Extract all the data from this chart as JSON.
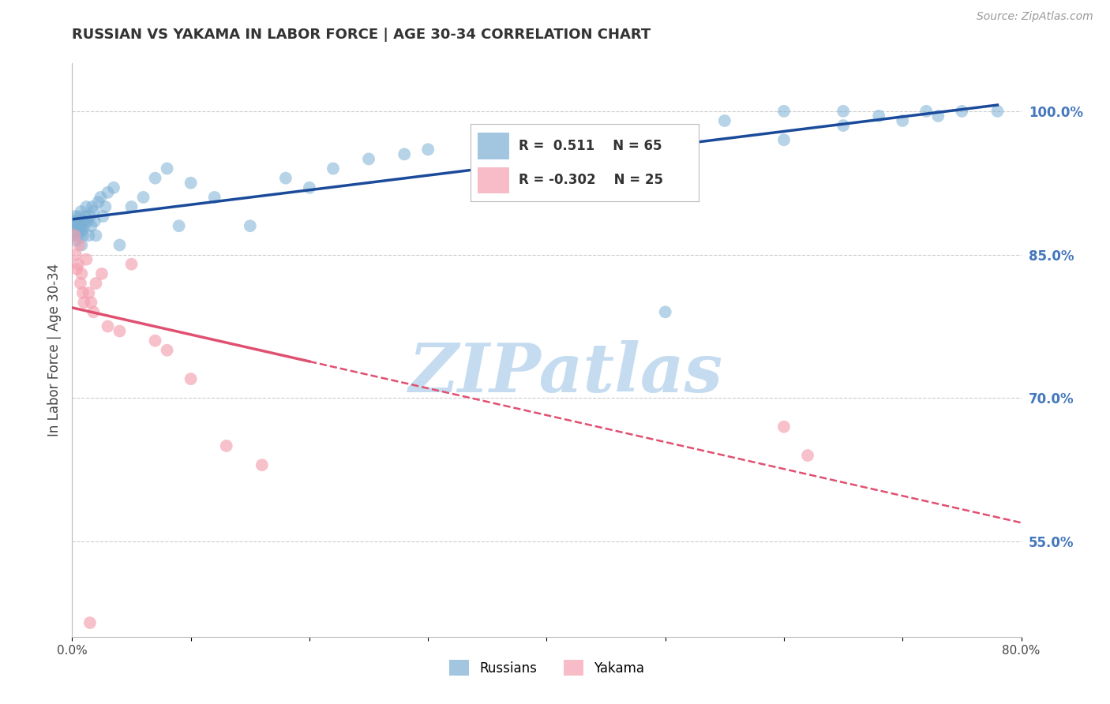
{
  "title": "RUSSIAN VS YAKAMA IN LABOR FORCE | AGE 30-34 CORRELATION CHART",
  "source_text": "Source: ZipAtlas.com",
  "ylabel": "In Labor Force | Age 30-34",
  "xlim": [
    0.0,
    80.0
  ],
  "ylim": [
    45.0,
    105.0
  ],
  "ytick_right_labels": [
    "100.0%",
    "85.0%",
    "70.0%",
    "55.0%"
  ],
  "ytick_right_values": [
    100.0,
    85.0,
    70.0,
    55.0
  ],
  "xtick_values": [
    0.0,
    10.0,
    20.0,
    30.0,
    40.0,
    50.0,
    60.0,
    70.0,
    80.0
  ],
  "blue_color": "#7BAFD4",
  "pink_color": "#F4A0B0",
  "blue_line_color": "#1A4A9A",
  "pink_line_color": "#E05070",
  "watermark_color": "#C5DCF0",
  "grid_color": "#CCCCCC",
  "right_axis_color": "#4477BB",
  "russians_x": [
    0.15,
    0.2,
    0.25,
    0.3,
    0.35,
    0.4,
    0.45,
    0.5,
    0.55,
    0.6,
    0.65,
    0.7,
    0.75,
    0.8,
    0.85,
    0.9,
    0.95,
    1.0,
    1.1,
    1.2,
    1.3,
    1.4,
    1.5,
    1.6,
    1.7,
    1.8,
    1.9,
    2.0,
    2.2,
    2.4,
    2.6,
    2.8,
    3.0,
    3.5,
    4.0,
    5.0,
    6.0,
    7.0,
    8.0,
    9.0,
    10.0,
    12.0,
    15.0,
    18.0,
    20.0,
    22.0,
    25.0,
    28.0,
    30.0,
    35.0,
    38.0,
    40.0,
    45.0,
    50.0,
    55.0,
    60.0,
    65.0,
    68.0,
    72.0,
    75.0,
    78.0,
    60.0,
    65.0,
    70.0,
    73.0
  ],
  "russians_y": [
    88.5,
    87.0,
    89.0,
    87.5,
    88.0,
    86.5,
    88.5,
    87.0,
    88.0,
    89.0,
    87.5,
    88.0,
    89.5,
    86.0,
    87.5,
    87.0,
    88.5,
    88.0,
    89.0,
    90.0,
    88.5,
    87.0,
    89.0,
    88.0,
    90.0,
    89.5,
    88.5,
    87.0,
    90.5,
    91.0,
    89.0,
    90.0,
    91.5,
    92.0,
    86.0,
    90.0,
    91.0,
    93.0,
    94.0,
    88.0,
    92.5,
    91.0,
    88.0,
    93.0,
    92.0,
    94.0,
    95.0,
    95.5,
    96.0,
    96.5,
    97.0,
    98.0,
    97.0,
    79.0,
    99.0,
    100.0,
    100.0,
    99.5,
    100.0,
    100.0,
    100.0,
    97.0,
    98.5,
    99.0,
    99.5
  ],
  "yakama_x": [
    0.2,
    0.3,
    0.4,
    0.5,
    0.6,
    0.7,
    0.8,
    0.9,
    1.0,
    1.2,
    1.4,
    1.6,
    1.8,
    2.0,
    2.5,
    3.0,
    4.0,
    5.0,
    7.0,
    8.0,
    10.0,
    13.0,
    16.0,
    60.0,
    62.0
  ],
  "yakama_y": [
    87.0,
    85.0,
    83.5,
    84.0,
    86.0,
    82.0,
    83.0,
    81.0,
    80.0,
    84.5,
    81.0,
    80.0,
    79.0,
    82.0,
    83.0,
    77.5,
    77.0,
    84.0,
    76.0,
    75.0,
    72.0,
    65.0,
    63.0,
    67.0,
    64.0
  ],
  "yakama_outlier_x": [
    1.5
  ],
  "yakama_outlier_y": [
    46.5
  ]
}
